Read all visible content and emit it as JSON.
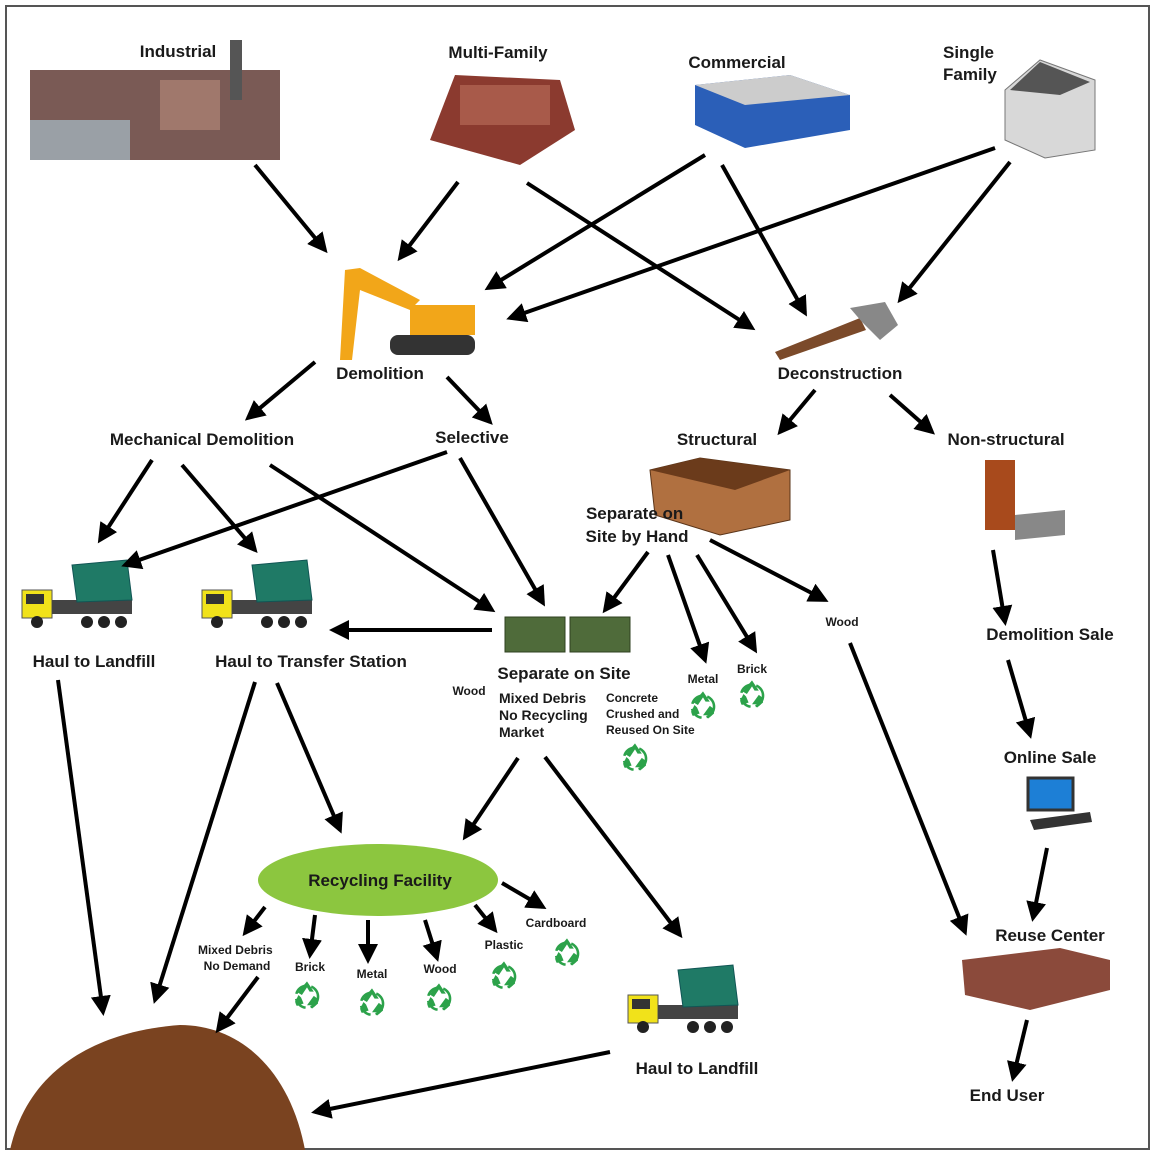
{
  "nodes": [
    {
      "label": "Industrial"
    },
    {
      "label": "Multi-Family"
    },
    {
      "label": "Commercial"
    },
    {
      "lines": [
        "Single",
        "Family"
      ]
    },
    {
      "label": "Demolition"
    },
    {
      "label": "Deconstruction"
    },
    {
      "label": "Mechanical Demolition"
    },
    {
      "label": "Selective"
    },
    {
      "label": "Structural"
    },
    {
      "label": "Non-structural"
    },
    {
      "lines": [
        "Separate on",
        "Site by Hand"
      ]
    },
    {
      "label": "Wood"
    },
    {
      "label": "Demolition Sale"
    },
    {
      "label": "Haul to Landfill"
    },
    {
      "label": "Haul to Transfer Station"
    },
    {
      "label": "Separate on Site"
    },
    {
      "label": "Wood"
    },
    {
      "lines": [
        "Mixed Debris",
        "No Recycling",
        "Market"
      ]
    },
    {
      "lines": [
        "Concrete",
        "Crushed and",
        "Reused On Site"
      ]
    },
    {
      "label": "Metal"
    },
    {
      "label": "Brick"
    },
    {
      "label": "Online Sale"
    },
    {
      "label": "Recycling Facility"
    },
    {
      "lines": [
        "Mixed Debris",
        "No Demand"
      ]
    },
    {
      "label": "Brick"
    },
    {
      "label": "Metal"
    },
    {
      "label": "Wood"
    },
    {
      "label": "Plastic"
    },
    {
      "label": "Cardboard"
    },
    {
      "label": "Reuse Center"
    },
    {
      "label": "Haul to Landfill"
    },
    {
      "label": "End User"
    }
  ]
}
